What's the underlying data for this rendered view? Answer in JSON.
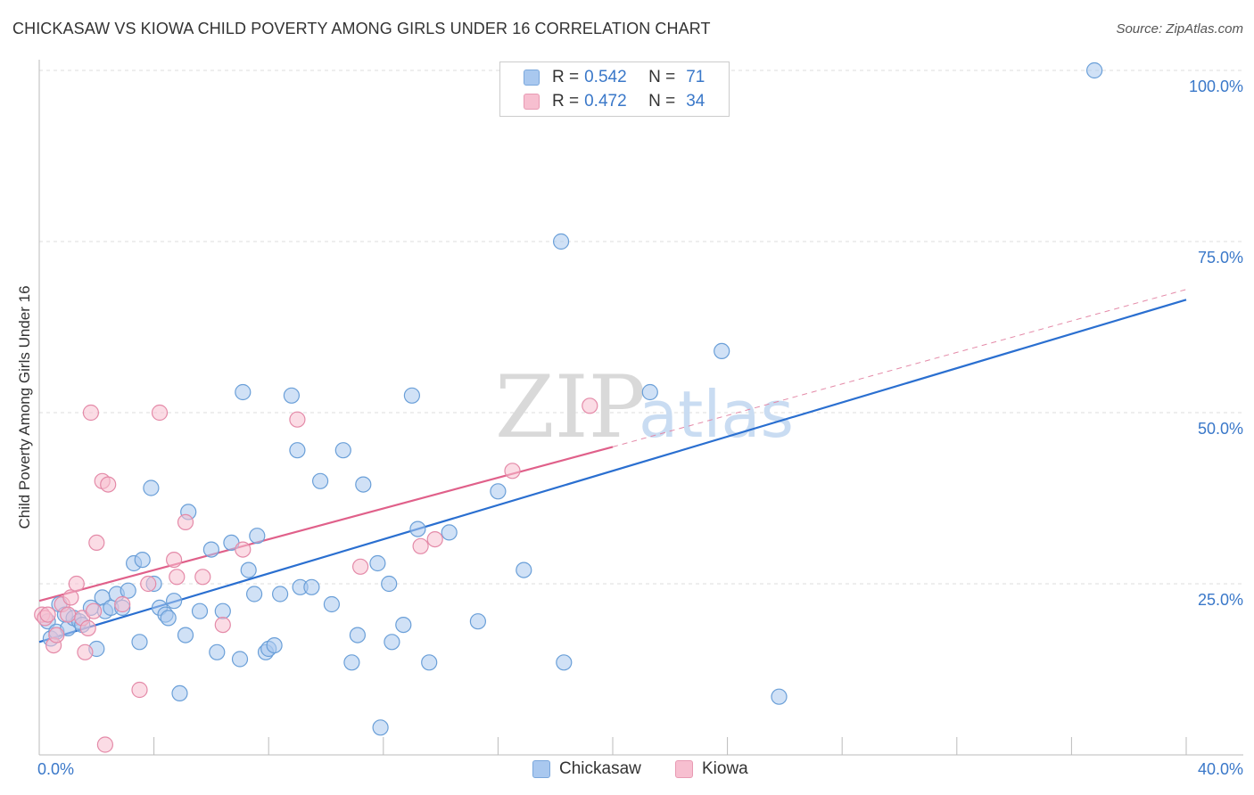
{
  "title": "CHICKASAW VS KIOWA CHILD POVERTY AMONG GIRLS UNDER 16 CORRELATION CHART",
  "source": "Source: ZipAtlas.com",
  "watermark": {
    "zip": "ZIP",
    "atlas": "atlas"
  },
  "legend_top": {
    "rows": [
      {
        "r_label": "R =",
        "r_value": "0.542",
        "n_label": "N =",
        "n_value": "71",
        "color": "#a9c8ef",
        "border": "#7aa7dc"
      },
      {
        "r_label": "R =",
        "r_value": "0.472",
        "n_label": "N =",
        "n_value": "34",
        "color": "#f7bfd0",
        "border": "#e89ab3"
      }
    ]
  },
  "legend_bottom": [
    {
      "label": "Chickasaw",
      "color": "#a9c8ef",
      "border": "#7aa7dc"
    },
    {
      "label": "Kiowa",
      "color": "#f7bfd0",
      "border": "#e89ab3"
    }
  ],
  "chart_data": {
    "type": "scatter",
    "title": "CHICKASAW VS KIOWA CHILD POVERTY AMONG GIRLS UNDER 16 CORRELATION CHART",
    "xlabel": "",
    "ylabel": "Child Poverty Among Girls Under 16",
    "xlim": [
      0,
      40
    ],
    "ylim": [
      0,
      102
    ],
    "x_tick_labels": [
      {
        "value": 0,
        "label": "0.0%"
      },
      {
        "value": 40,
        "label": "40.0%"
      }
    ],
    "y_tick_labels": [
      {
        "value": 25,
        "label": "25.0%"
      },
      {
        "value": 50,
        "label": "50.0%"
      },
      {
        "value": 75,
        "label": "75.0%"
      },
      {
        "value": 100,
        "label": "100.0%"
      }
    ],
    "x_minor_ticks": [
      0,
      4,
      8,
      12,
      16,
      20,
      24,
      28,
      32,
      36,
      40
    ],
    "grid": true,
    "legend_position": "top-center",
    "series": [
      {
        "name": "Chickasaw",
        "color": "#a9c8ef",
        "stroke": "#6a9fd8",
        "r": 0.542,
        "n": 71,
        "trend": {
          "x": [
            0,
            40
          ],
          "y": [
            16.5,
            66.5
          ],
          "color": "#2a6fd0"
        },
        "points": [
          [
            0.3,
            19.5
          ],
          [
            0.4,
            17.0
          ],
          [
            0.6,
            18.0
          ],
          [
            0.7,
            22.0
          ],
          [
            0.9,
            20.5
          ],
          [
            1.0,
            18.5
          ],
          [
            1.2,
            20.0
          ],
          [
            1.4,
            19.5
          ],
          [
            1.5,
            19.0
          ],
          [
            1.8,
            21.5
          ],
          [
            2.0,
            15.5
          ],
          [
            2.2,
            23.0
          ],
          [
            2.3,
            21.0
          ],
          [
            2.5,
            21.5
          ],
          [
            2.7,
            23.5
          ],
          [
            2.9,
            21.5
          ],
          [
            3.1,
            24.0
          ],
          [
            3.3,
            28.0
          ],
          [
            3.5,
            16.5
          ],
          [
            3.6,
            28.5
          ],
          [
            3.9,
            39.0
          ],
          [
            4.0,
            25.0
          ],
          [
            4.2,
            21.5
          ],
          [
            4.4,
            20.5
          ],
          [
            4.5,
            20.0
          ],
          [
            4.7,
            22.5
          ],
          [
            4.9,
            9.0
          ],
          [
            5.1,
            17.5
          ],
          [
            5.2,
            35.5
          ],
          [
            5.6,
            21.0
          ],
          [
            6.0,
            30.0
          ],
          [
            6.2,
            15.0
          ],
          [
            6.4,
            21.0
          ],
          [
            6.7,
            31.0
          ],
          [
            7.0,
            14.0
          ],
          [
            7.1,
            53.0
          ],
          [
            7.3,
            27.0
          ],
          [
            7.5,
            23.5
          ],
          [
            7.6,
            32.0
          ],
          [
            7.9,
            15.0
          ],
          [
            8.0,
            15.5
          ],
          [
            8.2,
            16.0
          ],
          [
            8.4,
            23.5
          ],
          [
            8.8,
            52.5
          ],
          [
            9.0,
            44.5
          ],
          [
            9.1,
            24.5
          ],
          [
            9.5,
            24.5
          ],
          [
            9.8,
            40.0
          ],
          [
            10.2,
            22.0
          ],
          [
            10.6,
            44.5
          ],
          [
            10.9,
            13.5
          ],
          [
            11.1,
            17.5
          ],
          [
            11.3,
            39.5
          ],
          [
            11.8,
            28.0
          ],
          [
            11.9,
            4.0
          ],
          [
            12.2,
            25.0
          ],
          [
            12.3,
            16.5
          ],
          [
            12.7,
            19.0
          ],
          [
            13.0,
            52.5
          ],
          [
            13.2,
            33.0
          ],
          [
            13.6,
            13.5
          ],
          [
            14.3,
            32.5
          ],
          [
            15.3,
            19.5
          ],
          [
            16.0,
            38.5
          ],
          [
            16.9,
            27.0
          ],
          [
            18.2,
            75.0
          ],
          [
            18.3,
            13.5
          ],
          [
            21.3,
            53.0
          ],
          [
            23.8,
            59.0
          ],
          [
            25.8,
            8.5
          ],
          [
            36.8,
            100.0
          ]
        ]
      },
      {
        "name": "Kiowa",
        "color": "#f7bfd0",
        "stroke": "#e48aa8",
        "r": 0.472,
        "n": 34,
        "trend": {
          "x": [
            0,
            20
          ],
          "y": [
            22.5,
            45.0
          ],
          "color": "#e0608a"
        },
        "trend_ext": {
          "x": [
            20,
            40
          ],
          "y": [
            45.0,
            68.0
          ],
          "color": "#e48aa8"
        },
        "points": [
          [
            0.1,
            20.5
          ],
          [
            0.2,
            20.0
          ],
          [
            0.3,
            20.5
          ],
          [
            0.5,
            16.0
          ],
          [
            0.6,
            17.5
          ],
          [
            0.8,
            22.0
          ],
          [
            1.0,
            20.5
          ],
          [
            1.1,
            23.0
          ],
          [
            1.3,
            25.0
          ],
          [
            1.5,
            20.0
          ],
          [
            1.6,
            15.0
          ],
          [
            1.7,
            18.5
          ],
          [
            1.8,
            50.0
          ],
          [
            1.9,
            21.0
          ],
          [
            2.0,
            31.0
          ],
          [
            2.2,
            40.0
          ],
          [
            2.3,
            1.5
          ],
          [
            2.4,
            39.5
          ],
          [
            2.9,
            22.0
          ],
          [
            3.5,
            9.5
          ],
          [
            3.8,
            25.0
          ],
          [
            4.2,
            50.0
          ],
          [
            4.7,
            28.5
          ],
          [
            4.8,
            26.0
          ],
          [
            5.1,
            34.0
          ],
          [
            5.7,
            26.0
          ],
          [
            6.4,
            19.0
          ],
          [
            7.1,
            30.0
          ],
          [
            9.0,
            49.0
          ],
          [
            11.2,
            27.5
          ],
          [
            13.3,
            30.5
          ],
          [
            13.8,
            31.5
          ],
          [
            16.5,
            41.5
          ],
          [
            19.2,
            51.0
          ]
        ]
      }
    ]
  }
}
